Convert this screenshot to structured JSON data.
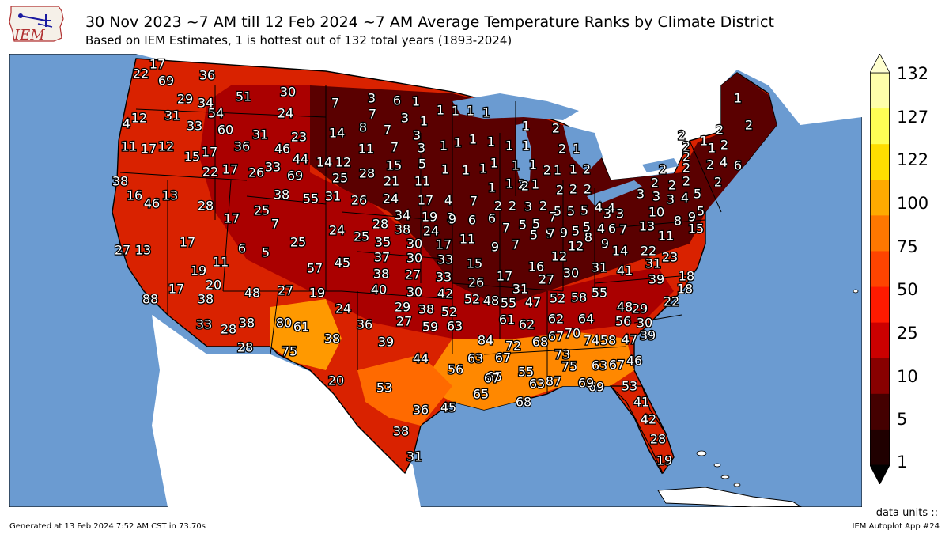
{
  "header": {
    "title": "30 Nov 2023 ~7 AM till 12 Feb 2024 ~7 AM Average Temperature Ranks by Climate District",
    "subtitle": "Based on IEM Estimates, 1 is hottest out of 132 total years (1893-2024)"
  },
  "logo": {
    "text": "IEM",
    "icon": "iem-logo-icon"
  },
  "colorbar": {
    "labels": [
      "132",
      "127",
      "122",
      "100",
      "75",
      "50",
      "25",
      "10",
      "5",
      "1"
    ],
    "colors": [
      "#ffffaa",
      "#ffff55",
      "#ffdd00",
      "#ffaa00",
      "#ff7700",
      "#ff4400",
      "#ff1a00",
      "#cc0000",
      "#880000",
      "#440000",
      "#200000"
    ]
  },
  "map_colors": {
    "ocean": "#6b9bd1",
    "land": "#ffffff",
    "lake": "#6b9bd1"
  },
  "district_ranks": [
    {
      "state": "WA",
      "values": [
        "17",
        "22",
        "69",
        "12",
        "4",
        "29",
        "34",
        "31",
        "54",
        "33"
      ]
    },
    {
      "state": "OR",
      "values": [
        "11",
        "17",
        "12",
        "15",
        "17",
        "22",
        "17"
      ]
    },
    {
      "state": "ID",
      "values": [
        "36",
        "51",
        "60",
        "36",
        "31",
        "26",
        "33"
      ]
    },
    {
      "state": "MT",
      "values": [
        "30",
        "24",
        "7",
        "23",
        "46",
        "44"
      ]
    },
    {
      "state": "ND",
      "values": [
        "3",
        "6",
        "1",
        "7",
        "3",
        "1",
        "8",
        "7",
        "3",
        "1"
      ]
    },
    {
      "state": "MN",
      "values": [
        "1",
        "1",
        "1",
        "1",
        "1",
        "1",
        "1",
        "1",
        "1",
        "1",
        "2"
      ]
    },
    {
      "state": "WI",
      "values": [
        "1",
        "1",
        "1",
        "1",
        "1",
        "1",
        "1",
        "1",
        "2",
        "1"
      ]
    },
    {
      "state": "MI",
      "values": [
        "2",
        "1",
        "1",
        "1",
        "2",
        "2",
        "2",
        "2",
        "2",
        "2"
      ]
    },
    {
      "state": "ME",
      "values": [
        "1",
        "2",
        "2"
      ]
    },
    {
      "state": "NE/NY/PA",
      "values": [
        "2",
        "1",
        "2",
        "2",
        "2",
        "1",
        "2",
        "2",
        "4",
        "6",
        "2",
        "2",
        "2",
        "2",
        "3",
        "3",
        "3",
        "4",
        "5",
        "5",
        "2"
      ]
    },
    {
      "state": "SD",
      "values": [
        "14",
        "11",
        "7",
        "3",
        "15",
        "5",
        "28",
        "21",
        "11",
        "12",
        "25",
        "14"
      ]
    },
    {
      "state": "CA",
      "values": [
        "38",
        "16",
        "46",
        "13",
        "27",
        "13",
        "17",
        "88"
      ]
    },
    {
      "state": "NV/UT",
      "values": [
        "28",
        "17",
        "25",
        "7",
        "6",
        "5",
        "11",
        "19",
        "20",
        "17"
      ]
    },
    {
      "state": "WY/CO",
      "values": [
        "69",
        "38",
        "55",
        "31",
        "26",
        "25",
        "24",
        "25",
        "57",
        "45"
      ]
    },
    {
      "state": "NE/KS",
      "values": [
        "24",
        "17",
        "34",
        "19",
        "28",
        "38",
        "24",
        "35",
        "30",
        "17",
        "37",
        "30",
        "33",
        "38",
        "27",
        "33"
      ]
    },
    {
      "state": "IA/MO",
      "values": [
        "4",
        "7",
        "3",
        "2",
        "2",
        "3",
        "2",
        "7",
        "9",
        "6",
        "6",
        "7",
        "5",
        "5",
        "11",
        "9",
        "7",
        "15",
        "17"
      ]
    },
    {
      "state": "IL/IN/OH",
      "values": [
        "9",
        "5",
        "7",
        "5",
        "5",
        "5",
        "4",
        "4",
        "3",
        "3",
        "7",
        "9",
        "5",
        "5",
        "4",
        "6",
        "7",
        "8",
        "9",
        "12",
        "16",
        "12",
        "27"
      ]
    },
    {
      "state": "AZ/NM",
      "values": [
        "38",
        "48",
        "27",
        "19",
        "33",
        "28",
        "38",
        "28",
        "80",
        "61",
        "75",
        "38",
        "24"
      ]
    },
    {
      "state": "TX/OK",
      "values": [
        "40",
        "36",
        "30",
        "42",
        "29",
        "38",
        "52",
        "27",
        "59",
        "63",
        "39",
        "44",
        "20",
        "53",
        "56",
        "36",
        "45",
        "38",
        "31"
      ]
    },
    {
      "state": "South",
      "values": [
        "26",
        "17",
        "31",
        "30",
        "31",
        "52",
        "48",
        "55",
        "47",
        "69",
        "61",
        "62",
        "84",
        "72",
        "68",
        "67",
        "70",
        "62",
        "64",
        "52",
        "58",
        "55",
        "63",
        "67",
        "65",
        "67",
        "55",
        "63",
        "87",
        "65",
        "68",
        "73",
        "75",
        "74",
        "58",
        "47",
        "63",
        "67",
        "46",
        "69",
        "53",
        "41",
        "42",
        "28",
        "19"
      ]
    },
    {
      "state": "VA/NC/SC",
      "values": [
        "41",
        "14",
        "22",
        "31",
        "23",
        "39",
        "18",
        "18",
        "22",
        "48",
        "56",
        "29",
        "30",
        "39",
        "11",
        "13",
        "10",
        "8",
        "9",
        "15"
      ]
    }
  ],
  "footer": {
    "generated": "Generated at 13 Feb 2024 7:52 AM CST in 73.70s",
    "app": "IEM Autoplot App #24",
    "units": "data units ::"
  }
}
